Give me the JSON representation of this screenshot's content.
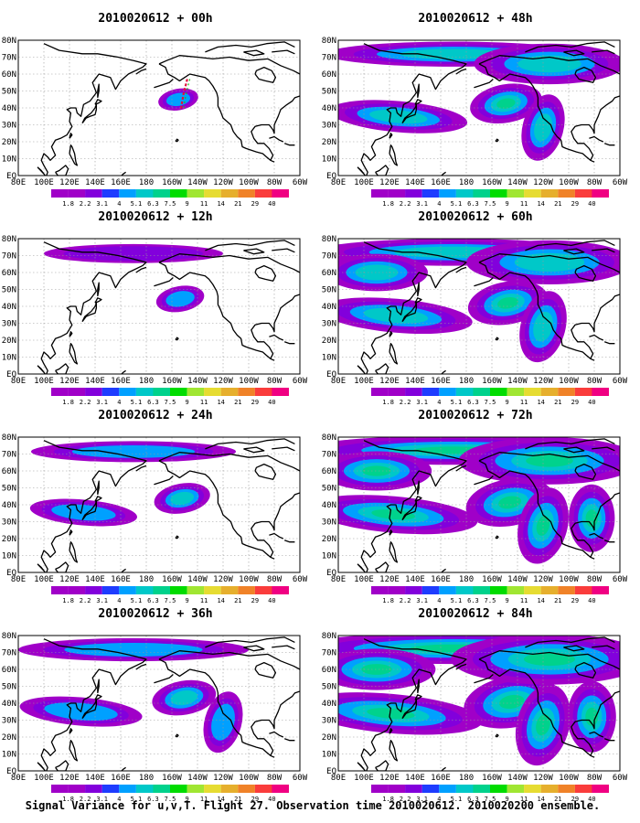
{
  "panels": [
    {
      "title": "2010020612 + 00h",
      "lead": "00h",
      "intensity": 0,
      "track": true
    },
    {
      "title": "2010020612 + 48h",
      "lead": "48h",
      "intensity": 4
    },
    {
      "title": "2010020612 + 12h",
      "lead": "12h",
      "intensity": 1
    },
    {
      "title": "2010020612 + 60h",
      "lead": "60h",
      "intensity": 5
    },
    {
      "title": "2010020612 + 24h",
      "lead": "24h",
      "intensity": 2
    },
    {
      "title": "2010020612 + 72h",
      "lead": "72h",
      "intensity": 6
    },
    {
      "title": "2010020612 + 36h",
      "lead": "36h",
      "intensity": 3
    },
    {
      "title": "2010020612 + 84h",
      "lead": "84h",
      "intensity": 7
    }
  ],
  "lat_labels": [
    "80N",
    "70N",
    "60N",
    "50N",
    "40N",
    "30N",
    "20N",
    "10N",
    "EQ"
  ],
  "lon_labels": [
    "80E",
    "100E",
    "120E",
    "140E",
    "160E",
    "180",
    "160W",
    "140W",
    "120W",
    "100W",
    "80W",
    "60W"
  ],
  "colorbar": {
    "labels": [
      "1.8",
      "2.2",
      "3.1",
      "4",
      "5.1",
      "6.3",
      "7.5",
      "9",
      "11",
      "14",
      "21",
      "29",
      "40"
    ],
    "colors": [
      "#a000c8",
      "#8200dc",
      "#1e3cff",
      "#00a0ff",
      "#00c8c8",
      "#00d28c",
      "#00dc00",
      "#a0e632",
      "#e6dc32",
      "#e6af2d",
      "#f08228",
      "#fa3c3c",
      "#f00082"
    ]
  },
  "caption": "Signal Variance for u,v,T. Flight 27. Observation time 2010020612. 2010020200 ensemble."
}
